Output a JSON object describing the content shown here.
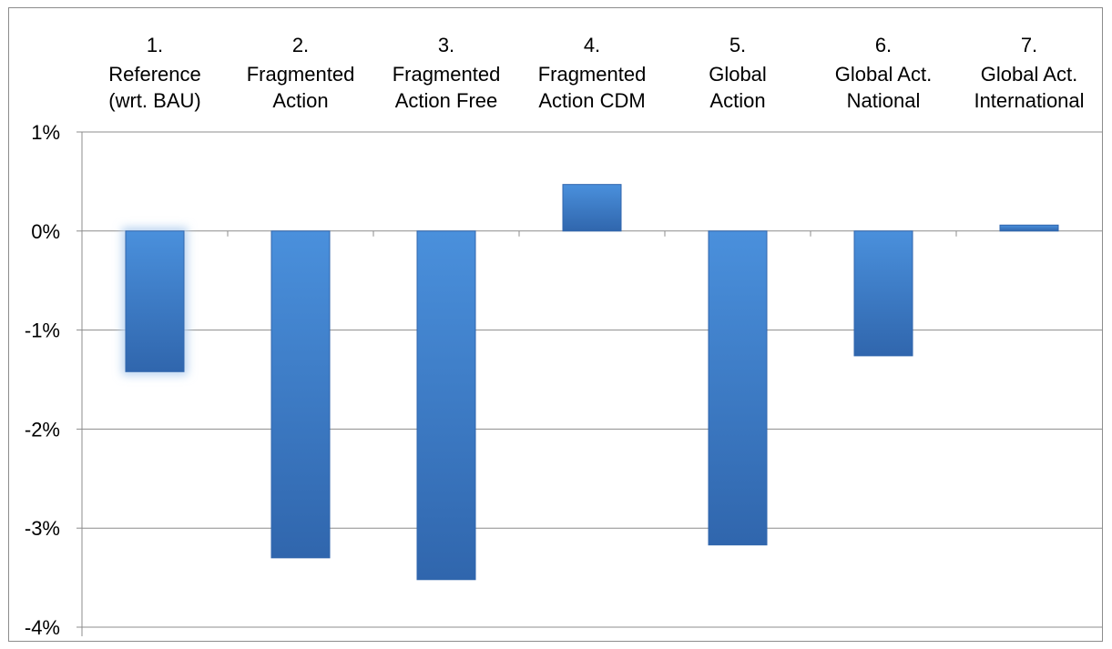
{
  "chart_data": {
    "type": "bar",
    "title": "",
    "xlabel": "",
    "ylabel": "",
    "x_axis_position": "top",
    "categories": [
      [
        "1.",
        "Reference",
        "(wrt. BAU)"
      ],
      [
        "2.",
        "Fragmented",
        "Action"
      ],
      [
        "3.",
        "Fragmented",
        "Action Free"
      ],
      [
        "4.",
        "Fragmented",
        "Action CDM"
      ],
      [
        "5.",
        "Global",
        "Action"
      ],
      [
        "6.",
        "Global Act.",
        "National"
      ],
      [
        "7.",
        "Global Act.",
        "International"
      ]
    ],
    "values": [
      -1.42,
      -3.3,
      -3.52,
      0.47,
      -3.17,
      -1.26,
      0.06
    ],
    "highlighted_index": 0,
    "y_ticks": [
      "1%",
      "0%",
      "-1%",
      "-2%",
      "-3%",
      "-4%"
    ],
    "ylim": [
      -4,
      1
    ],
    "grid": true,
    "legend": "none",
    "colors": {
      "bar_light": "#4a90dc",
      "bar_dark": "#3066ad",
      "grid": "#8c8c8c",
      "glow": "#b9d3f0"
    }
  }
}
